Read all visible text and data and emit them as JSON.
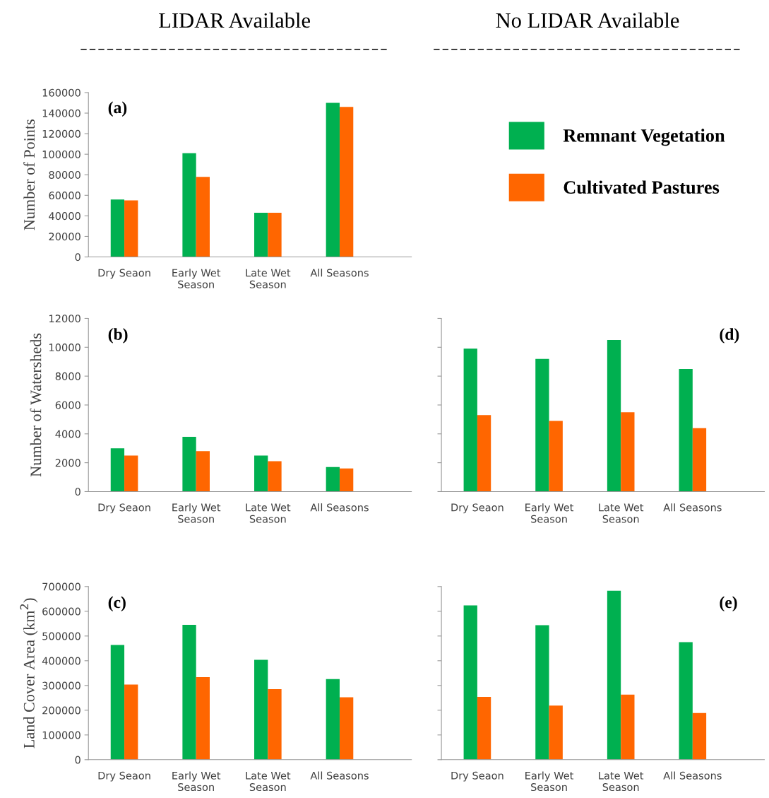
{
  "chart_data": [
    {
      "type": "bar",
      "title": "LIDAR Available",
      "ylabel": "Number of Points",
      "annotations": [
        "(a)"
      ],
      "categories": [
        "Dry Seaon",
        "Early Wet\nSeason",
        "Late Wet\nSeason",
        "All Seasons"
      ],
      "ylim": [
        0,
        160000
      ],
      "yticks": [
        0,
        20000,
        40000,
        60000,
        80000,
        100000,
        120000,
        140000,
        160000
      ],
      "legend": "right",
      "grid": false,
      "series": [
        {
          "name": "Remnant Vegetation",
          "color": "#00b050",
          "values": [
            56000,
            101000,
            43000,
            150000
          ]
        },
        {
          "name": "Cultivated Pastures",
          "color": "#ff6600",
          "values": [
            55000,
            78000,
            43000,
            146000
          ]
        }
      ]
    },
    {
      "type": "bar",
      "ylabel": "Number of Watersheds",
      "annotations": [
        "(b)"
      ],
      "categories": [
        "Dry Seaon",
        "Early Wet\nSeason",
        "Late Wet\nSeason",
        "All Seasons"
      ],
      "ylim": [
        0,
        12000
      ],
      "yticks": [
        0,
        2000,
        4000,
        6000,
        8000,
        10000,
        12000
      ],
      "grid": false,
      "series": [
        {
          "color": "#00b050",
          "values": [
            3000,
            3800,
            2500,
            1700
          ]
        },
        {
          "color": "#ff6600",
          "values": [
            2500,
            2800,
            2100,
            1600
          ]
        }
      ]
    },
    {
      "type": "bar",
      "ylabel": "Land Cover Area (km$^{2}$)",
      "annotations": [
        "(c)"
      ],
      "categories": [
        "Dry Seaon",
        "Early Wet\nSeason",
        "Late Wet\nSeason",
        "All Seasons"
      ],
      "ylim": [
        0,
        700000
      ],
      "yticks": [
        0,
        100000,
        200000,
        300000,
        400000,
        500000,
        600000,
        700000
      ],
      "grid": false,
      "series": [
        {
          "color": "#00b050",
          "values": [
            464000,
            545000,
            404000,
            326000
          ]
        },
        {
          "color": "#ff6600",
          "values": [
            304000,
            334000,
            285000,
            252000
          ]
        }
      ]
    },
    {
      "type": "bar",
      "title": "No LIDAR Available",
      "annotations": [
        "(d)"
      ],
      "categories": [
        "Dry Seaon",
        "Early Wet\nSeason",
        "Late Wet\nSeason",
        "All Seasons"
      ],
      "ylim": [
        0,
        12000
      ],
      "yticks": [
        0,
        2000,
        4000,
        6000,
        8000,
        10000,
        12000
      ],
      "tick_labels": "x",
      "grid": false,
      "series": [
        {
          "color": "#00b050",
          "values": [
            9900,
            9200,
            10500,
            8500
          ]
        },
        {
          "color": "#ff6600",
          "values": [
            5300,
            4900,
            5500,
            4400
          ]
        }
      ]
    },
    {
      "type": "bar",
      "annotations": [
        "(e)"
      ],
      "categories": [
        "Dry Seaon",
        "Early Wet\nSeason",
        "Late Wet\nSeason",
        "All Seasons"
      ],
      "ylim": [
        0,
        700000
      ],
      "yticks": [
        0,
        100000,
        200000,
        300000,
        400000,
        500000,
        600000,
        700000
      ],
      "tick_labels": "x",
      "grid": false,
      "series": [
        {
          "color": "#00b050",
          "values": [
            624000,
            544000,
            683000,
            475000
          ]
        },
        {
          "color": "#ff6600",
          "values": [
            254000,
            219000,
            263000,
            189000
          ]
        }
      ]
    }
  ]
}
